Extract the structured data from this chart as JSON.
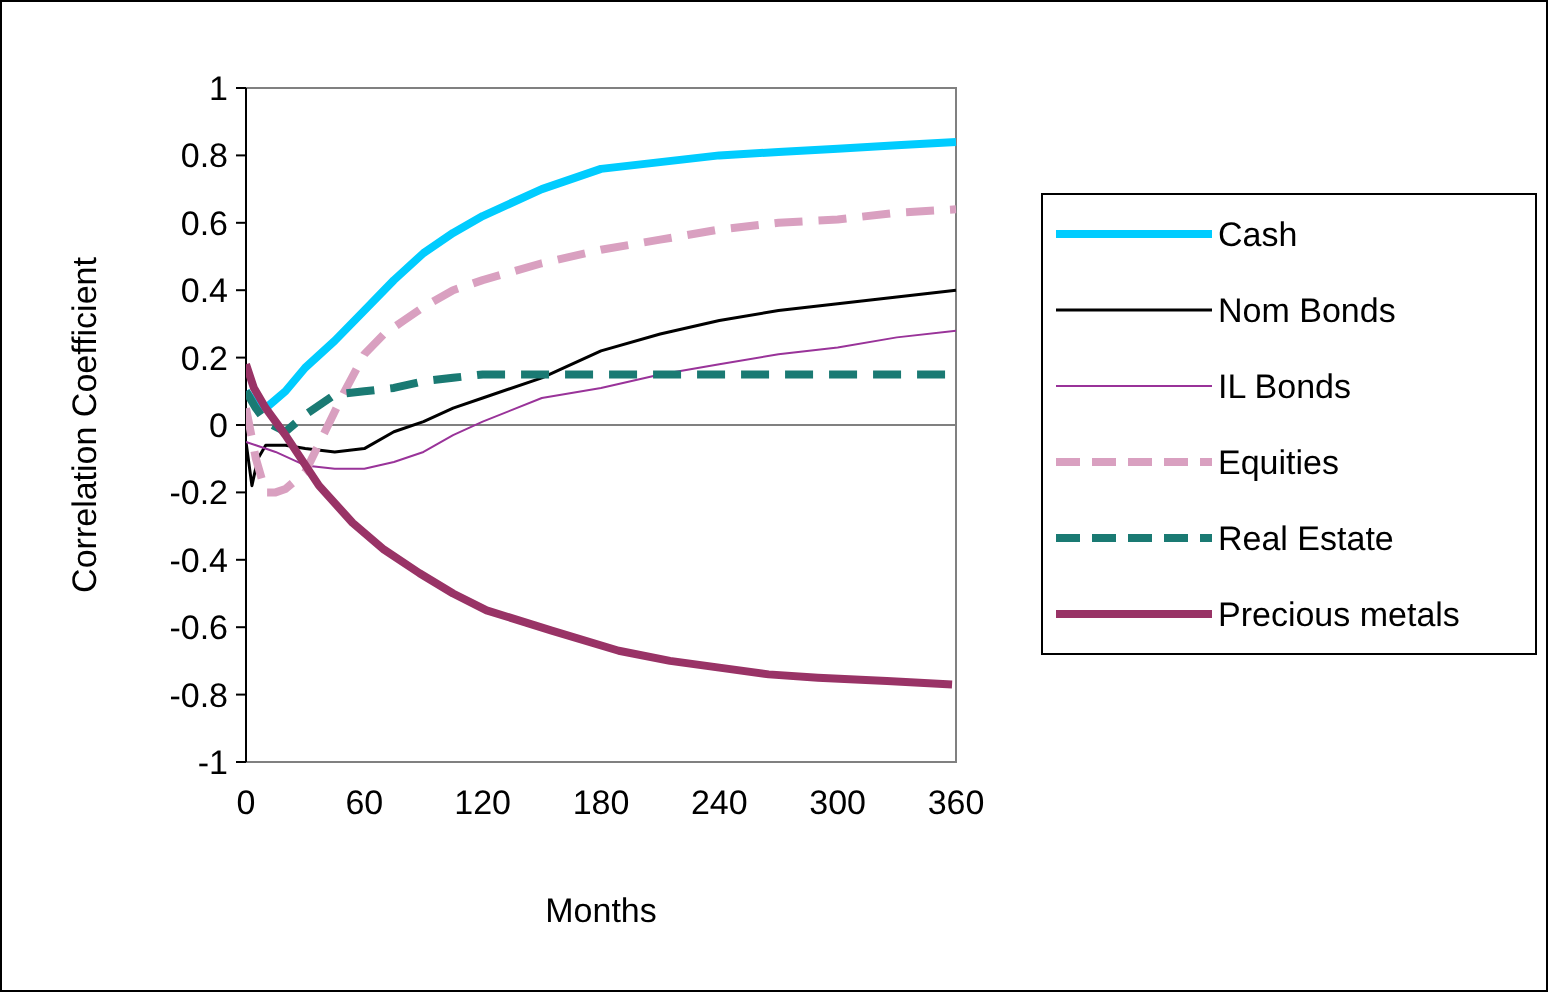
{
  "chart_data": {
    "type": "line",
    "xlabel": "Months",
    "ylabel": "Correlation Coefficient",
    "xlim": [
      0,
      360
    ],
    "xticks": [
      0,
      60,
      120,
      180,
      240,
      300,
      360
    ],
    "ylim": [
      -1,
      1
    ],
    "yticks": [
      -1,
      {
        "value": -0.8,
        "label": "-0.8"
      },
      {
        "value": -0.6,
        "label": "-0.6"
      },
      {
        "value": -0.4,
        "label": "-0.4"
      },
      {
        "value": -0.2,
        "label": "-0.2"
      },
      0,
      {
        "value": 0.2,
        "label": "0.2"
      },
      {
        "value": 0.4,
        "label": "0.4"
      },
      {
        "value": 0.6,
        "label": "0.6"
      },
      {
        "value": 0.8,
        "label": "0.8"
      },
      1
    ],
    "legend": "right",
    "ref_lines": [
      {
        "axis": "y",
        "value": 0,
        "color": "#808080"
      }
    ],
    "series": [
      {
        "name": "Cash",
        "color": "#00ccff",
        "line_style": "solid",
        "x": [
          0,
          5,
          10,
          20,
          30,
          45,
          60,
          75,
          90,
          105,
          120,
          150,
          180,
          210,
          240,
          270,
          300,
          330,
          360
        ],
        "values": [
          0.1,
          0.06,
          0.05,
          0.1,
          0.17,
          0.25,
          0.34,
          0.43,
          0.51,
          0.57,
          0.62,
          0.7,
          0.76,
          0.78,
          0.8,
          0.81,
          0.82,
          0.83,
          0.84
        ]
      },
      {
        "name": "Nom Bonds",
        "color": "#000000",
        "line_style": "solid",
        "x": [
          0,
          3,
          6,
          10,
          20,
          30,
          45,
          60,
          75,
          90,
          105,
          120,
          150,
          180,
          210,
          240,
          270,
          300,
          330,
          360
        ],
        "values": [
          -0.05,
          -0.18,
          -0.1,
          -0.06,
          -0.06,
          -0.07,
          -0.08,
          -0.07,
          -0.02,
          0.01,
          0.05,
          0.08,
          0.14,
          0.22,
          0.27,
          0.31,
          0.34,
          0.36,
          0.38,
          0.4
        ]
      },
      {
        "name": "IL Bonds",
        "color": "#993399",
        "line_style": "solid",
        "x": [
          0,
          5,
          15,
          30,
          45,
          60,
          75,
          90,
          105,
          120,
          150,
          180,
          210,
          240,
          270,
          300,
          330,
          360
        ],
        "values": [
          -0.05,
          -0.06,
          -0.08,
          -0.12,
          -0.13,
          -0.13,
          -0.11,
          -0.08,
          -0.03,
          0.01,
          0.08,
          0.11,
          0.15,
          0.18,
          0.21,
          0.23,
          0.26,
          0.28
        ]
      },
      {
        "name": "Equities",
        "color": "#d9a0c0",
        "line_style": "dashed",
        "x": [
          0,
          5,
          10,
          15,
          20,
          30,
          40,
          50,
          60,
          70,
          80,
          90,
          105,
          120,
          150,
          180,
          210,
          240,
          270,
          300,
          330,
          360
        ],
        "values": [
          0.05,
          -0.1,
          -0.2,
          -0.2,
          -0.19,
          -0.14,
          -0.02,
          0.1,
          0.21,
          0.27,
          0.31,
          0.35,
          0.4,
          0.43,
          0.48,
          0.52,
          0.55,
          0.58,
          0.6,
          0.61,
          0.63,
          0.64
        ]
      },
      {
        "name": "Real Estate",
        "color": "#1a7a73",
        "line_style": "dashed",
        "x": [
          0,
          5,
          10,
          20,
          30,
          45,
          60,
          75,
          90,
          105,
          120,
          150,
          180,
          210,
          240,
          270,
          300,
          330,
          360
        ],
        "values": [
          0.1,
          0.05,
          0.01,
          -0.02,
          0.03,
          0.09,
          0.1,
          0.11,
          0.13,
          0.14,
          0.15,
          0.15,
          0.15,
          0.15,
          0.15,
          0.15,
          0.15,
          0.15,
          0.15
        ]
      },
      {
        "name": "Precious metals",
        "color": "#993366",
        "line_style": "solid",
        "x": [
          0,
          4,
          10,
          20,
          37,
          54,
          70,
          88,
          105,
          122,
          155,
          189,
          215,
          240,
          265,
          290,
          325,
          358
        ],
        "values": [
          0.18,
          0.11,
          0.05,
          -0.03,
          -0.18,
          -0.29,
          -0.37,
          -0.44,
          -0.5,
          -0.55,
          -0.61,
          -0.67,
          -0.7,
          -0.72,
          -0.74,
          -0.75,
          -0.76,
          -0.77
        ]
      }
    ]
  }
}
